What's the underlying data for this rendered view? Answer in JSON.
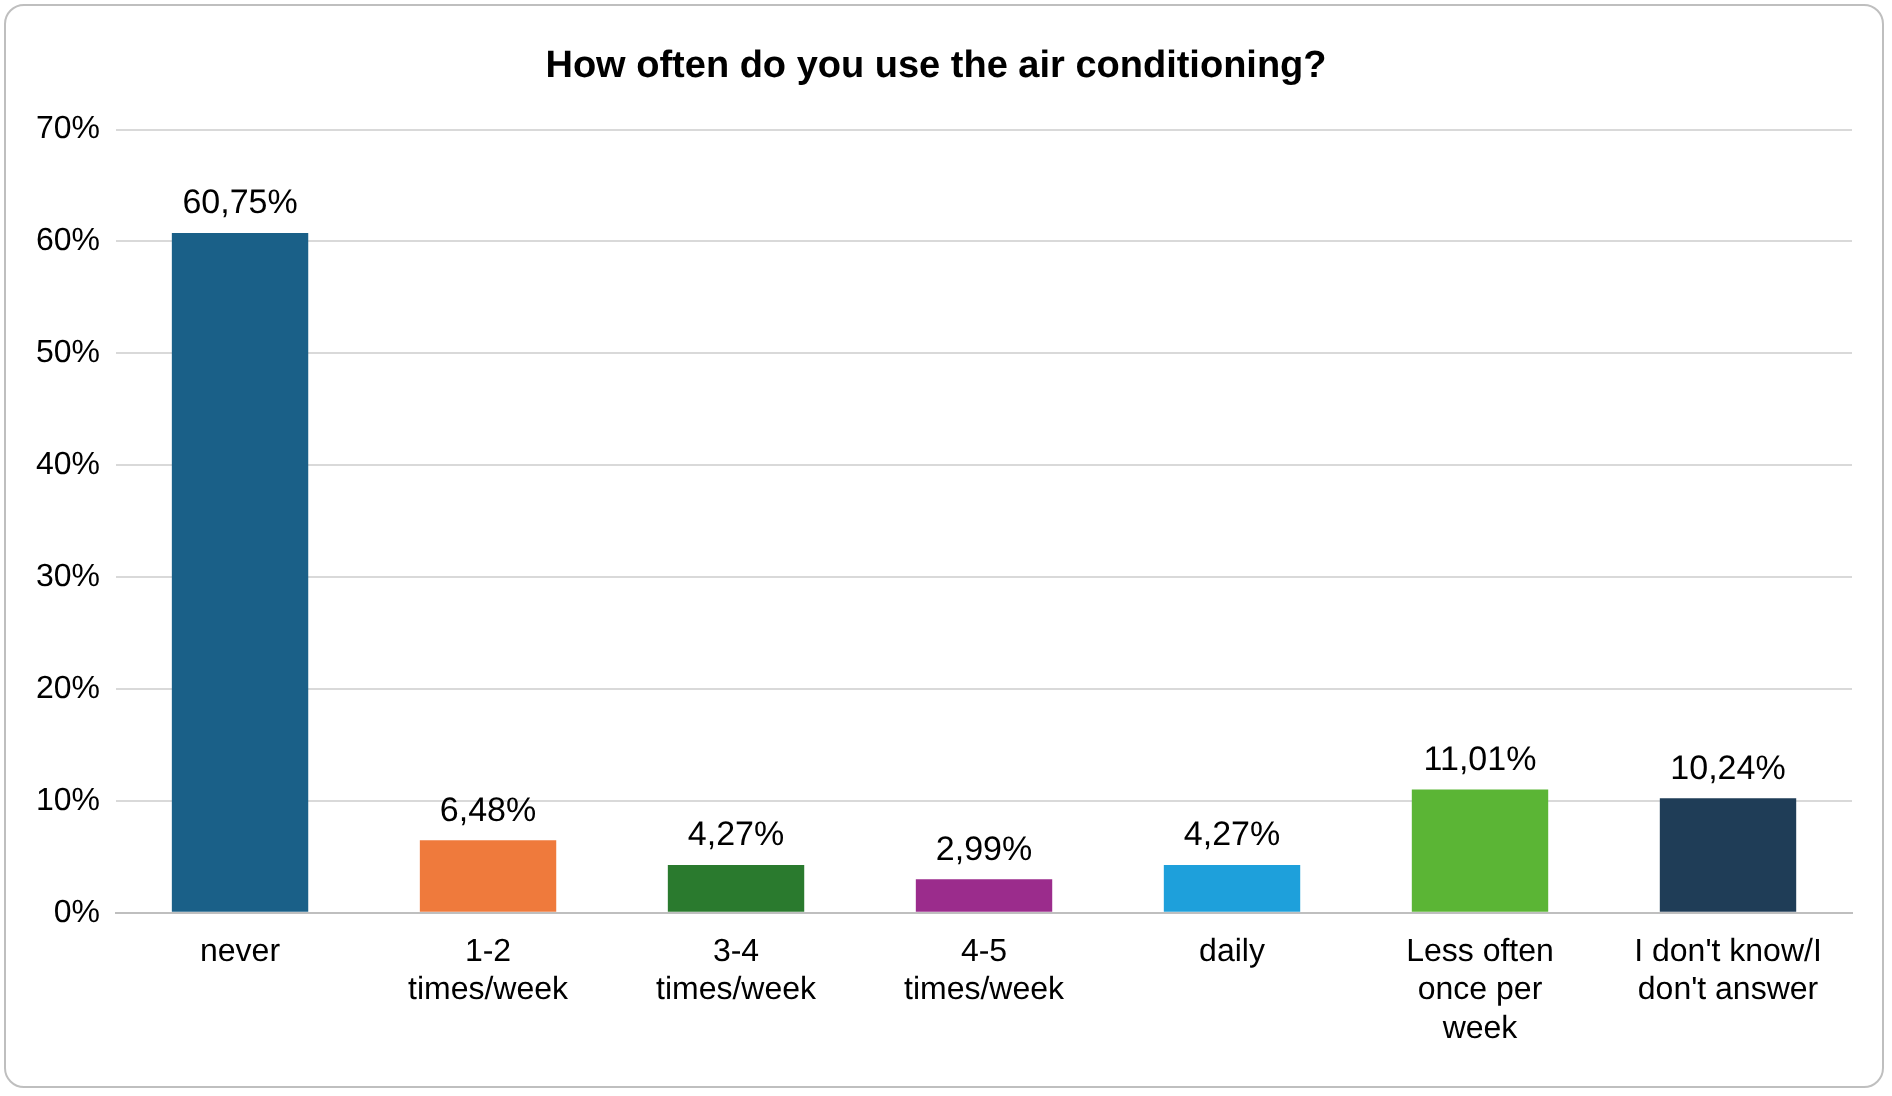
{
  "chart_data": {
    "type": "bar",
    "title": "How often do you use the air conditioning?",
    "categories": [
      "never",
      "1-2 times/week",
      "3-4 times/week",
      "4-5 times/week",
      "daily",
      "Less often once per week",
      "I don't know/I don't answer"
    ],
    "values": [
      60.75,
      6.48,
      4.27,
      2.99,
      4.27,
      11.01,
      10.24
    ],
    "colors": [
      "#1a6088",
      "#ef7a3c",
      "#2a7a2e",
      "#9b2c8c",
      "#1ea0db",
      "#5bb535",
      "#1f3d57"
    ],
    "value_labels": [
      "60,75%",
      "6,48%",
      "4,27%",
      "2,99%",
      "4,27%",
      "11,01%",
      "10,24%"
    ],
    "ylim": [
      0,
      70
    ],
    "yticks": [
      {
        "value": 0,
        "label": "0%"
      },
      {
        "value": 10,
        "label": "10%"
      },
      {
        "value": 20,
        "label": "20%"
      },
      {
        "value": 30,
        "label": "30%"
      },
      {
        "value": 40,
        "label": "40%"
      },
      {
        "value": 50,
        "label": "50%"
      },
      {
        "value": 60,
        "label": "60%"
      },
      {
        "value": 70,
        "label": "70%"
      }
    ],
    "grid": "y",
    "legend": false
  }
}
